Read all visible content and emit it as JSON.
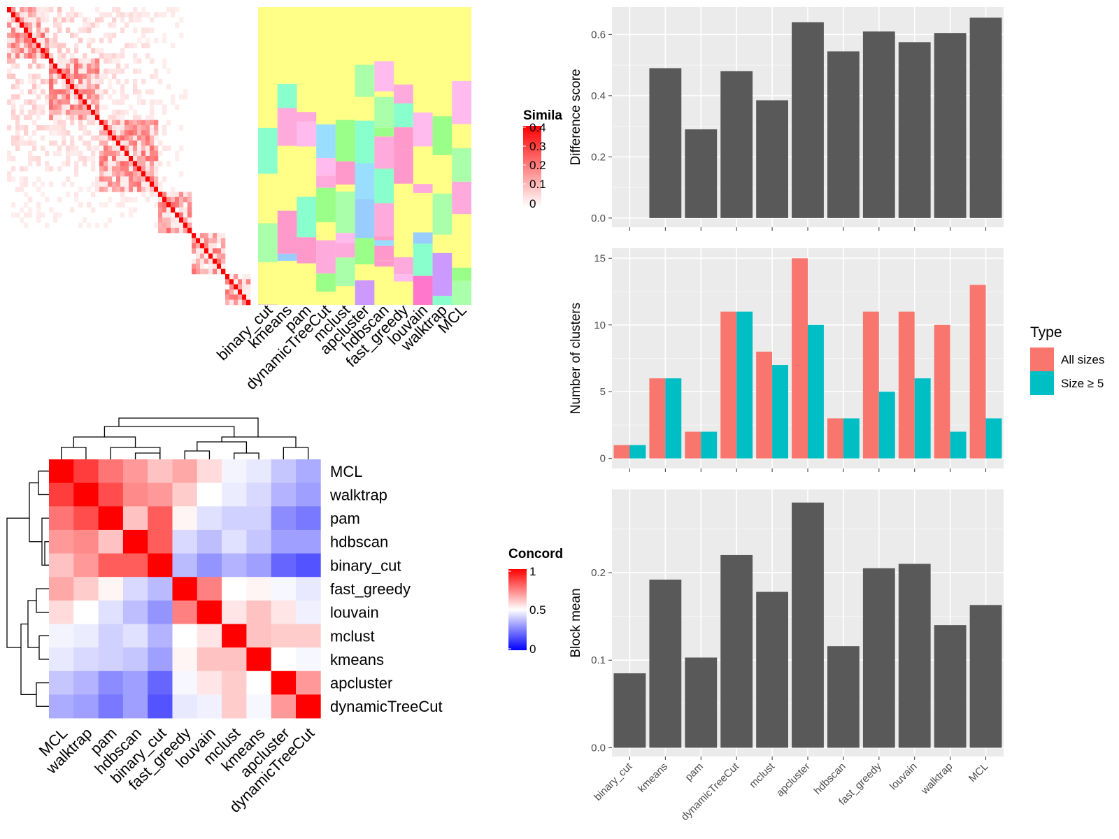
{
  "chart_data": [
    {
      "type": "heatmap",
      "panel": "cell-similarity",
      "legend_title": "Simila",
      "legend_ticks": [
        "0.4",
        "0.3",
        "0.2",
        "0.1",
        "0"
      ],
      "methods": [
        "binary_cut",
        "kmeans",
        "pam",
        "dynamicTreeCut",
        "mclust",
        "apcluster",
        "hdbscan",
        "fast_greedy",
        "louvain",
        "walktrap",
        "MCL"
      ],
      "colors": {
        "high": "#ff0000",
        "low": "#ffffff",
        "background": "#ffff88"
      }
    },
    {
      "type": "heatmap",
      "panel": "concordance",
      "legend_title": "Concord",
      "legend_ticks": [
        "1",
        "0.5",
        "0"
      ],
      "row_labels": [
        "MCL",
        "walktrap",
        "pam",
        "hdbscan",
        "binary_cut",
        "fast_greedy",
        "louvain",
        "mclust",
        "kmeans",
        "apcluster",
        "dynamicTreeCut"
      ],
      "col_labels": [
        "MCL",
        "walktrap",
        "pam",
        "hdbscan",
        "binary_cut",
        "fast_greedy",
        "louvain",
        "mclust",
        "kmeans",
        "apcluster",
        "dynamicTreeCut"
      ],
      "values": [
        [
          1.0,
          0.88,
          0.77,
          0.7,
          0.62,
          0.67,
          0.57,
          0.47,
          0.44,
          0.35,
          0.28
        ],
        [
          0.88,
          1.0,
          0.85,
          0.73,
          0.7,
          0.6,
          0.5,
          0.45,
          0.4,
          0.3,
          0.25
        ],
        [
          0.77,
          0.85,
          1.0,
          0.62,
          0.82,
          0.52,
          0.42,
          0.38,
          0.38,
          0.2,
          0.15
        ],
        [
          0.7,
          0.73,
          0.62,
          1.0,
          0.82,
          0.4,
          0.33,
          0.42,
          0.35,
          0.25,
          0.25
        ],
        [
          0.62,
          0.7,
          0.82,
          0.82,
          1.0,
          0.32,
          0.22,
          0.3,
          0.25,
          0.1,
          0.05
        ],
        [
          0.67,
          0.6,
          0.52,
          0.4,
          0.32,
          1.0,
          0.75,
          0.5,
          0.52,
          0.48,
          0.44
        ],
        [
          0.57,
          0.5,
          0.42,
          0.33,
          0.22,
          0.75,
          1.0,
          0.55,
          0.62,
          0.55,
          0.46
        ],
        [
          0.47,
          0.45,
          0.38,
          0.42,
          0.3,
          0.5,
          0.55,
          1.0,
          0.62,
          0.6,
          0.6
        ],
        [
          0.44,
          0.4,
          0.38,
          0.35,
          0.25,
          0.52,
          0.62,
          0.62,
          1.0,
          0.5,
          0.48
        ],
        [
          0.35,
          0.3,
          0.2,
          0.25,
          0.1,
          0.48,
          0.55,
          0.6,
          0.5,
          1.0,
          0.7
        ],
        [
          0.28,
          0.25,
          0.15,
          0.25,
          0.05,
          0.44,
          0.46,
          0.6,
          0.48,
          0.7,
          1.0
        ]
      ],
      "colors": {
        "high": "#ff0000",
        "mid": "#ffffff",
        "low": "#0000ff"
      }
    },
    {
      "type": "bar",
      "categories": [
        "binary_cut",
        "kmeans",
        "pam",
        "dynamicTreeCut",
        "mclust",
        "apcluster",
        "hdbscan",
        "fast_greedy",
        "louvain",
        "walktrap",
        "MCL"
      ],
      "values": [
        0.0,
        0.49,
        0.29,
        0.48,
        0.385,
        0.64,
        0.545,
        0.61,
        0.575,
        0.605,
        0.655
      ],
      "ylabel": "Difference score",
      "ylim": [
        -0.03,
        0.69
      ],
      "yticks": [
        0.0,
        0.2,
        0.4,
        0.6
      ],
      "ytick_labels": [
        "0.0",
        "0.2",
        "0.4",
        "0.6"
      ],
      "bar_color": "#595959",
      "grid": true
    },
    {
      "type": "bar",
      "categories": [
        "binary_cut",
        "kmeans",
        "pam",
        "dynamicTreeCut",
        "mclust",
        "apcluster",
        "hdbscan",
        "fast_greedy",
        "louvain",
        "walktrap",
        "MCL"
      ],
      "series": [
        {
          "name": "All sizes",
          "values": [
            1,
            6,
            2,
            11,
            8,
            15,
            3,
            11,
            11,
            10,
            13
          ],
          "color": "#f8766d"
        },
        {
          "name": "Size ≥ 5",
          "values": [
            1,
            6,
            2,
            11,
            7,
            10,
            3,
            5,
            6,
            2,
            3
          ],
          "color": "#00bfc4"
        }
      ],
      "ylabel": "Number of clusters",
      "ylim": [
        -0.75,
        15.75
      ],
      "yticks": [
        0,
        5,
        10,
        15
      ],
      "ytick_labels": [
        "0",
        "5",
        "10",
        "15"
      ],
      "legend_title": "Type",
      "legend_placement": "right",
      "grid": true
    },
    {
      "type": "bar",
      "categories": [
        "binary_cut",
        "kmeans",
        "pam",
        "dynamicTreeCut",
        "mclust",
        "apcluster",
        "hdbscan",
        "fast_greedy",
        "louvain",
        "walktrap",
        "MCL"
      ],
      "values": [
        0.085,
        0.192,
        0.103,
        0.22,
        0.178,
        0.28,
        0.116,
        0.205,
        0.21,
        0.14,
        0.163
      ],
      "ylabel": "Block mean",
      "ylim": [
        -0.01,
        0.295
      ],
      "yticks": [
        0.0,
        0.1,
        0.2
      ],
      "ytick_labels": [
        "0.0",
        "0.1",
        "0.2"
      ],
      "bar_color": "#595959",
      "grid": true
    }
  ]
}
